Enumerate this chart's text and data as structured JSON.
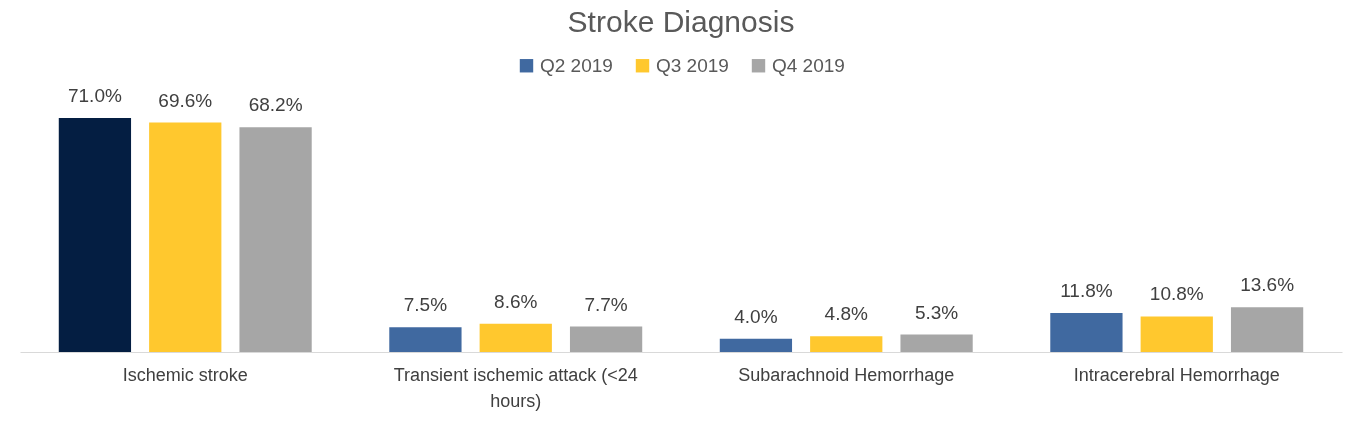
{
  "chart_data": {
    "type": "bar",
    "title": "Stroke Diagnosis",
    "categories": [
      "Ischemic stroke",
      "Transient ischemic attack (<24 hours)",
      "Subarachnoid Hemorrhage",
      "Intracerebral Hemorrhage"
    ],
    "series": [
      {
        "name": "Q2 2019",
        "color": "#4069a0",
        "colors": [
          "#041e42",
          "#4069a0",
          "#4069a0",
          "#4069a0"
        ],
        "values": [
          71.0,
          7.5,
          4.0,
          11.8
        ],
        "value_labels": [
          "71.0%",
          "7.5%",
          "4.0%",
          "11.8%"
        ]
      },
      {
        "name": "Q3 2019",
        "color": "#ffc82e",
        "values": [
          69.6,
          8.6,
          4.8,
          10.8
        ],
        "value_labels": [
          "69.6%",
          "8.6%",
          "4.8%",
          "10.8%"
        ]
      },
      {
        "name": "Q4 2019",
        "color": "#a6a6a6",
        "values": [
          68.2,
          7.7,
          5.3,
          13.6
        ],
        "value_labels": [
          "68.2%",
          "7.7%",
          "5.3%",
          "13.6%"
        ]
      }
    ],
    "legend": "top"
  }
}
